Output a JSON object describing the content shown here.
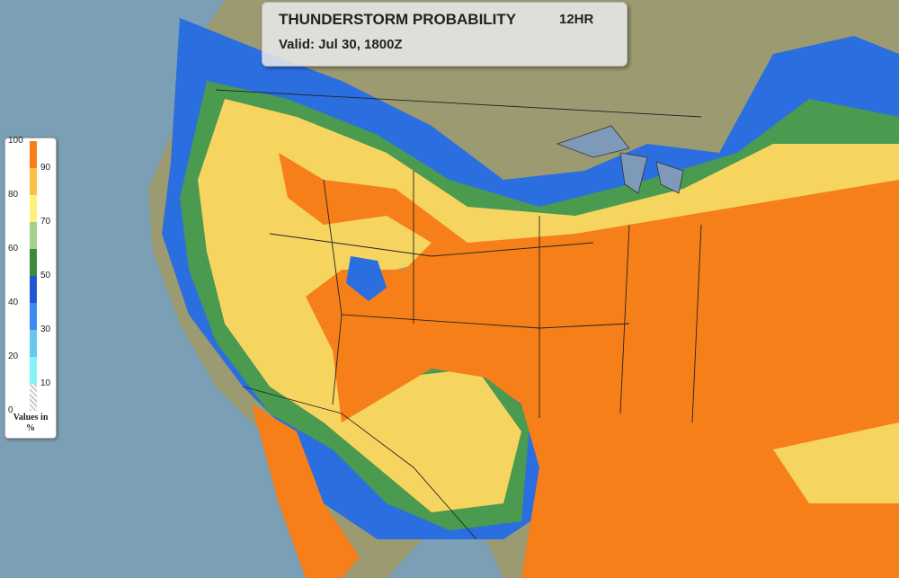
{
  "header": {
    "title": "THUNDERSTORM PROBABILITY",
    "period": "12HR",
    "valid": "Valid: Jul 30, 1800Z"
  },
  "legend": {
    "left_labels": [
      "100",
      "80",
      "60",
      "40",
      "20",
      "0"
    ],
    "right_labels": [
      "90",
      "70",
      "50",
      "30",
      "10"
    ],
    "caption": "Values in %"
  }
}
